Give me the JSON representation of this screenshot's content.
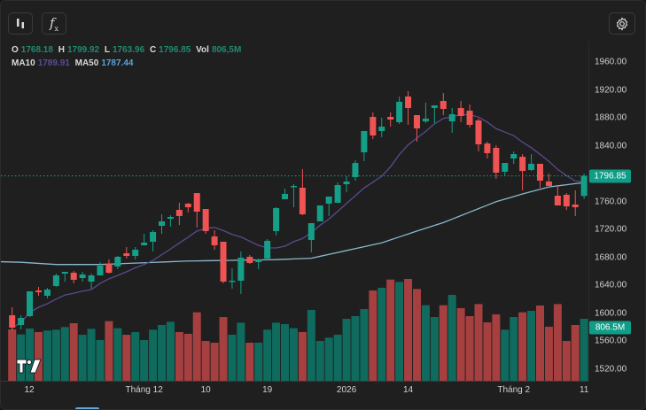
{
  "toolbar": {
    "chart_type_icon": "candles-icon",
    "indicator_icon": "fx-icon",
    "settings_icon": "gear-icon"
  },
  "legend": {
    "o_label": "O",
    "o": "1768.18",
    "h_label": "H",
    "h": "1799.92",
    "l_label": "L",
    "l": "1763.96",
    "c_label": "C",
    "c": "1796.85",
    "vol_label": "Vol",
    "vol": "806,5M",
    "ma10_label": "MA10",
    "ma10": "1789.91",
    "ma50_label": "MA50",
    "ma50": "1787.44"
  },
  "colors": {
    "up": "#14a088",
    "down": "#f05353",
    "vol_up": "#0f6b5e",
    "vol_down": "#a63f3f",
    "ma10": "#5a4a8e",
    "ma50": "#8ab8cc"
  },
  "chart_data": {
    "type": "candlestick",
    "x_tick_labels": [
      "12",
      "Tháng 12",
      "10",
      "19",
      "2026",
      "14",
      "Tháng 2",
      "11"
    ],
    "x_tick_index": [
      2,
      15,
      22,
      29,
      38,
      45,
      57,
      65
    ],
    "y_tick_labels": [
      "1960.00",
      "1920.00",
      "1880.00",
      "1840.00",
      "1760.00",
      "1720.00",
      "1680.00",
      "1640.00",
      "1600.00",
      "1560.00",
      "1520.00"
    ],
    "y_tick_values": [
      1960,
      1920,
      1880,
      1840,
      1760,
      1720,
      1680,
      1640,
      1600,
      1560,
      1520
    ],
    "ylim": [
      1520,
      1960
    ],
    "last_price_label": "1796.85",
    "last_price": 1796.85,
    "last_volume_label": "806.5M",
    "volume_unit": "M",
    "ohlc": [
      [
        1597.3,
        1608.7,
        1575.8,
        1579.6
      ],
      [
        1583.4,
        1597.3,
        1577.0,
        1593.5
      ],
      [
        1596.1,
        1631.6,
        1594.8,
        1631.6
      ],
      [
        1632.8,
        1637.9,
        1625.2,
        1630.3
      ],
      [
        1625.2,
        1636.6,
        1621.4,
        1634.1
      ],
      [
        1639.2,
        1657.0,
        1637.9,
        1654.4
      ],
      [
        1657.0,
        1659.5,
        1645.5,
        1659.5
      ],
      [
        1658.2,
        1660.7,
        1643.0,
        1648.1
      ],
      [
        1650.6,
        1659.5,
        1645.5,
        1655.7
      ],
      [
        1645.5,
        1657.0,
        1635.4,
        1654.4
      ],
      [
        1654.4,
        1673.4,
        1654.4,
        1668.3
      ],
      [
        1670.9,
        1677.2,
        1657.0,
        1658.2
      ],
      [
        1667.1,
        1682.3,
        1663.3,
        1681.0
      ],
      [
        1686.1,
        1695.0,
        1678.5,
        1682.3
      ],
      [
        1682.3,
        1695.0,
        1677.2,
        1691.2
      ],
      [
        1697.5,
        1714.0,
        1697.5,
        1701.3
      ],
      [
        1702.6,
        1719.1,
        1688.6,
        1716.5
      ],
      [
        1725.4,
        1741.9,
        1714.0,
        1731.8
      ],
      [
        1735.6,
        1740.6,
        1724.1,
        1738.1
      ],
      [
        1748.2,
        1758.4,
        1726.7,
        1739.4
      ],
      [
        1757.1,
        1758.4,
        1744.4,
        1752.0
      ],
      [
        1772.3,
        1772.3,
        1722.9,
        1745.7
      ],
      [
        1749.5,
        1749.5,
        1714.0,
        1717.8
      ],
      [
        1710.2,
        1719.1,
        1691.2,
        1697.5
      ],
      [
        1702.6,
        1702.6,
        1643.0,
        1645.5
      ],
      [
        1645.5,
        1664.5,
        1635.4,
        1646.8
      ],
      [
        1646.8,
        1688.6,
        1627.8,
        1679.8
      ],
      [
        1681.0,
        1683.6,
        1670.9,
        1672.2
      ],
      [
        1673.4,
        1678.5,
        1663.3,
        1677.2
      ],
      [
        1678.5,
        1706.4,
        1678.5,
        1703.9
      ],
      [
        1717.8,
        1752.0,
        1711.5,
        1750.8
      ],
      [
        1763.5,
        1778.7,
        1763.5,
        1771.1
      ],
      [
        1781.2,
        1785.0,
        1752.0,
        1782.5
      ],
      [
        1779.9,
        1806.6,
        1740.6,
        1741.9
      ],
      [
        1705.1,
        1729.2,
        1687.3,
        1729.2
      ],
      [
        1731.8,
        1754.6,
        1731.8,
        1754.6
      ],
      [
        1757.1,
        1767.3,
        1739.4,
        1767.3
      ],
      [
        1758.4,
        1787.5,
        1758.4,
        1783.7
      ],
      [
        1785.0,
        1796.4,
        1773.6,
        1788.8
      ],
      [
        1795.2,
        1819.3,
        1790.1,
        1815.4
      ],
      [
        1830.7,
        1861.1,
        1818.0,
        1861.1
      ],
      [
        1881.4,
        1887.7,
        1849.7,
        1854.8
      ],
      [
        1861.1,
        1880.1,
        1852.2,
        1867.4
      ],
      [
        1881.4,
        1887.7,
        1867.4,
        1877.6
      ],
      [
        1873.8,
        1910.6,
        1871.2,
        1903.0
      ],
      [
        1910.6,
        1918.2,
        1870.0,
        1894.1
      ],
      [
        1883.9,
        1883.9,
        1845.9,
        1864.9
      ],
      [
        1875.0,
        1901.7,
        1872.5,
        1878.9
      ],
      [
        1894.1,
        1897.9,
        1872.5,
        1897.9
      ],
      [
        1904.2,
        1915.6,
        1883.9,
        1892.8
      ],
      [
        1875.0,
        1894.1,
        1858.6,
        1885.2
      ],
      [
        1894.1,
        1904.2,
        1873.8,
        1882.7
      ],
      [
        1890.3,
        1899.1,
        1866.2,
        1870.0
      ],
      [
        1876.3,
        1878.9,
        1832.0,
        1842.1
      ],
      [
        1843.3,
        1845.9,
        1821.8,
        1829.4
      ],
      [
        1837.0,
        1840.8,
        1792.6,
        1801.5
      ],
      [
        1802.8,
        1815.4,
        1796.4,
        1815.4
      ],
      [
        1821.8,
        1832.0,
        1814.2,
        1828.1
      ],
      [
        1824.3,
        1828.1,
        1776.1,
        1804.0
      ],
      [
        1805.3,
        1828.1,
        1804.0,
        1814.2
      ],
      [
        1814.2,
        1814.2,
        1780.0,
        1790.1
      ],
      [
        1788.8,
        1800.2,
        1782.5,
        1782.5
      ],
      [
        1768.5,
        1782.5,
        1754.6,
        1754.6
      ],
      [
        1769.8,
        1772.3,
        1748.2,
        1753.3
      ],
      [
        1755.9,
        1776.1,
        1739.4,
        1752.0
      ],
      [
        1768.18,
        1799.92,
        1763.96,
        1796.85
      ]
    ],
    "volume": [
      668,
      603,
      680,
      634,
      653,
      664,
      699,
      749,
      599,
      676,
      530,
      776,
      684,
      599,
      634,
      530,
      664,
      726,
      768,
      634,
      611,
      891,
      518,
      495,
      829,
      599,
      756,
      495,
      495,
      664,
      756,
      737,
      684,
      634,
      922,
      518,
      561,
      599,
      806,
      841,
      933,
      1175,
      1210,
      1317,
      1286,
      1325,
      1194,
      983,
      829,
      983,
      1117,
      945,
      841,
      998,
      760,
      864,
      664,
      829,
      891,
      910,
      979,
      703,
      998,
      518,
      726,
      806.5
    ],
    "ma50_points": [
      [
        0,
        1674
      ],
      [
        5,
        1670
      ],
      [
        10,
        1670
      ],
      [
        20,
        1675
      ],
      [
        30,
        1677
      ],
      [
        34,
        1679
      ],
      [
        38,
        1690
      ],
      [
        42,
        1701
      ],
      [
        46,
        1718
      ],
      [
        49,
        1730
      ],
      [
        52,
        1745
      ],
      [
        55,
        1760
      ],
      [
        58,
        1771
      ],
      [
        61,
        1781
      ],
      [
        65,
        1787.44
      ]
    ]
  }
}
